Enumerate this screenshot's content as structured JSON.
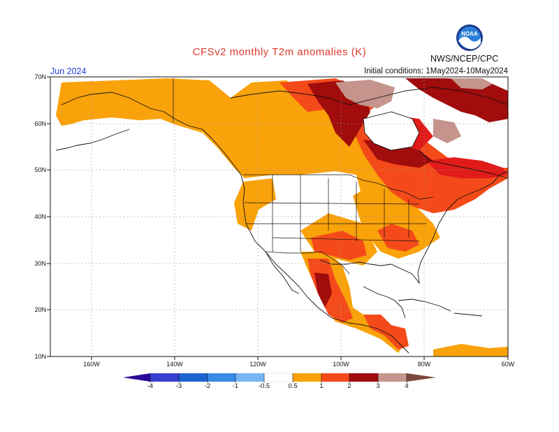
{
  "title": "CFSv2 monthly T2m anomalies (K)",
  "agency": "NWS/NCEP/CPC",
  "valid_label": "Jun 2024",
  "initial_conditions": "Initial conditions: 1May2024-10May2024",
  "logo": {
    "text": "NOAA",
    "icon": "noaa-logo"
  },
  "map": {
    "lat_labels": [
      "70N",
      "60N",
      "50N",
      "40N",
      "30N",
      "20N",
      "10N"
    ],
    "lon_labels": [
      "160W",
      "140W",
      "120W",
      "100W",
      "80W",
      "60W"
    ],
    "extent": {
      "lon": [
        -170,
        -60
      ],
      "lat": [
        10,
        70
      ]
    }
  },
  "colorbar": {
    "labels": [
      "-4",
      "-3",
      "-2",
      "-1",
      "-0.5",
      "0.5",
      "1",
      "2",
      "3",
      "4"
    ],
    "colors": {
      "lt_-4": "#2a0a9a",
      "-4_-3": "#3a3fcf",
      "-3_-2": "#1c64d0",
      "-2_-1": "#3a8ae8",
      "-1_-0.5": "#78b6f5",
      "-0.5_0.5": "#ffffff",
      "0.5_1": "#f9a20a",
      "1_2": "#f44a1a",
      "2_3": "#e11a1a",
      "3_4": "#a10c0c",
      "4_5": "#c5948c",
      "gt_5": "#7a4a3e"
    }
  }
}
